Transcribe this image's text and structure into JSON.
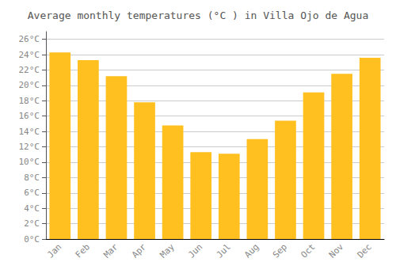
{
  "chart_data": {
    "type": "bar",
    "title": "Average monthly temperatures (°C ) in Villa Ojo de Agua",
    "categories": [
      "Jan",
      "Feb",
      "Mar",
      "Apr",
      "May",
      "Jun",
      "Jul",
      "Aug",
      "Sep",
      "Oct",
      "Nov",
      "Dec"
    ],
    "values": [
      24.3,
      23.3,
      21.2,
      17.8,
      14.8,
      11.3,
      11.1,
      13.0,
      15.4,
      19.1,
      21.5,
      23.6
    ],
    "color": "#FFC020",
    "ylim": [
      0,
      27
    ],
    "yticks": [
      {
        "value": 0,
        "label": "0°C"
      },
      {
        "value": 2,
        "label": "2°C"
      },
      {
        "value": 4,
        "label": "4°C"
      },
      {
        "value": 6,
        "label": "6°C"
      },
      {
        "value": 8,
        "label": "8°C"
      },
      {
        "value": 10,
        "label": "10°C"
      },
      {
        "value": 12,
        "label": "12°C"
      },
      {
        "value": 14,
        "label": "14°C"
      },
      {
        "value": 16,
        "label": "16°C"
      },
      {
        "value": 18,
        "label": "18°C"
      },
      {
        "value": 20,
        "label": "20°C"
      },
      {
        "value": 22,
        "label": "22°C"
      },
      {
        "value": 24,
        "label": "24°C"
      },
      {
        "value": 26,
        "label": "26°C"
      }
    ],
    "grid": true
  }
}
